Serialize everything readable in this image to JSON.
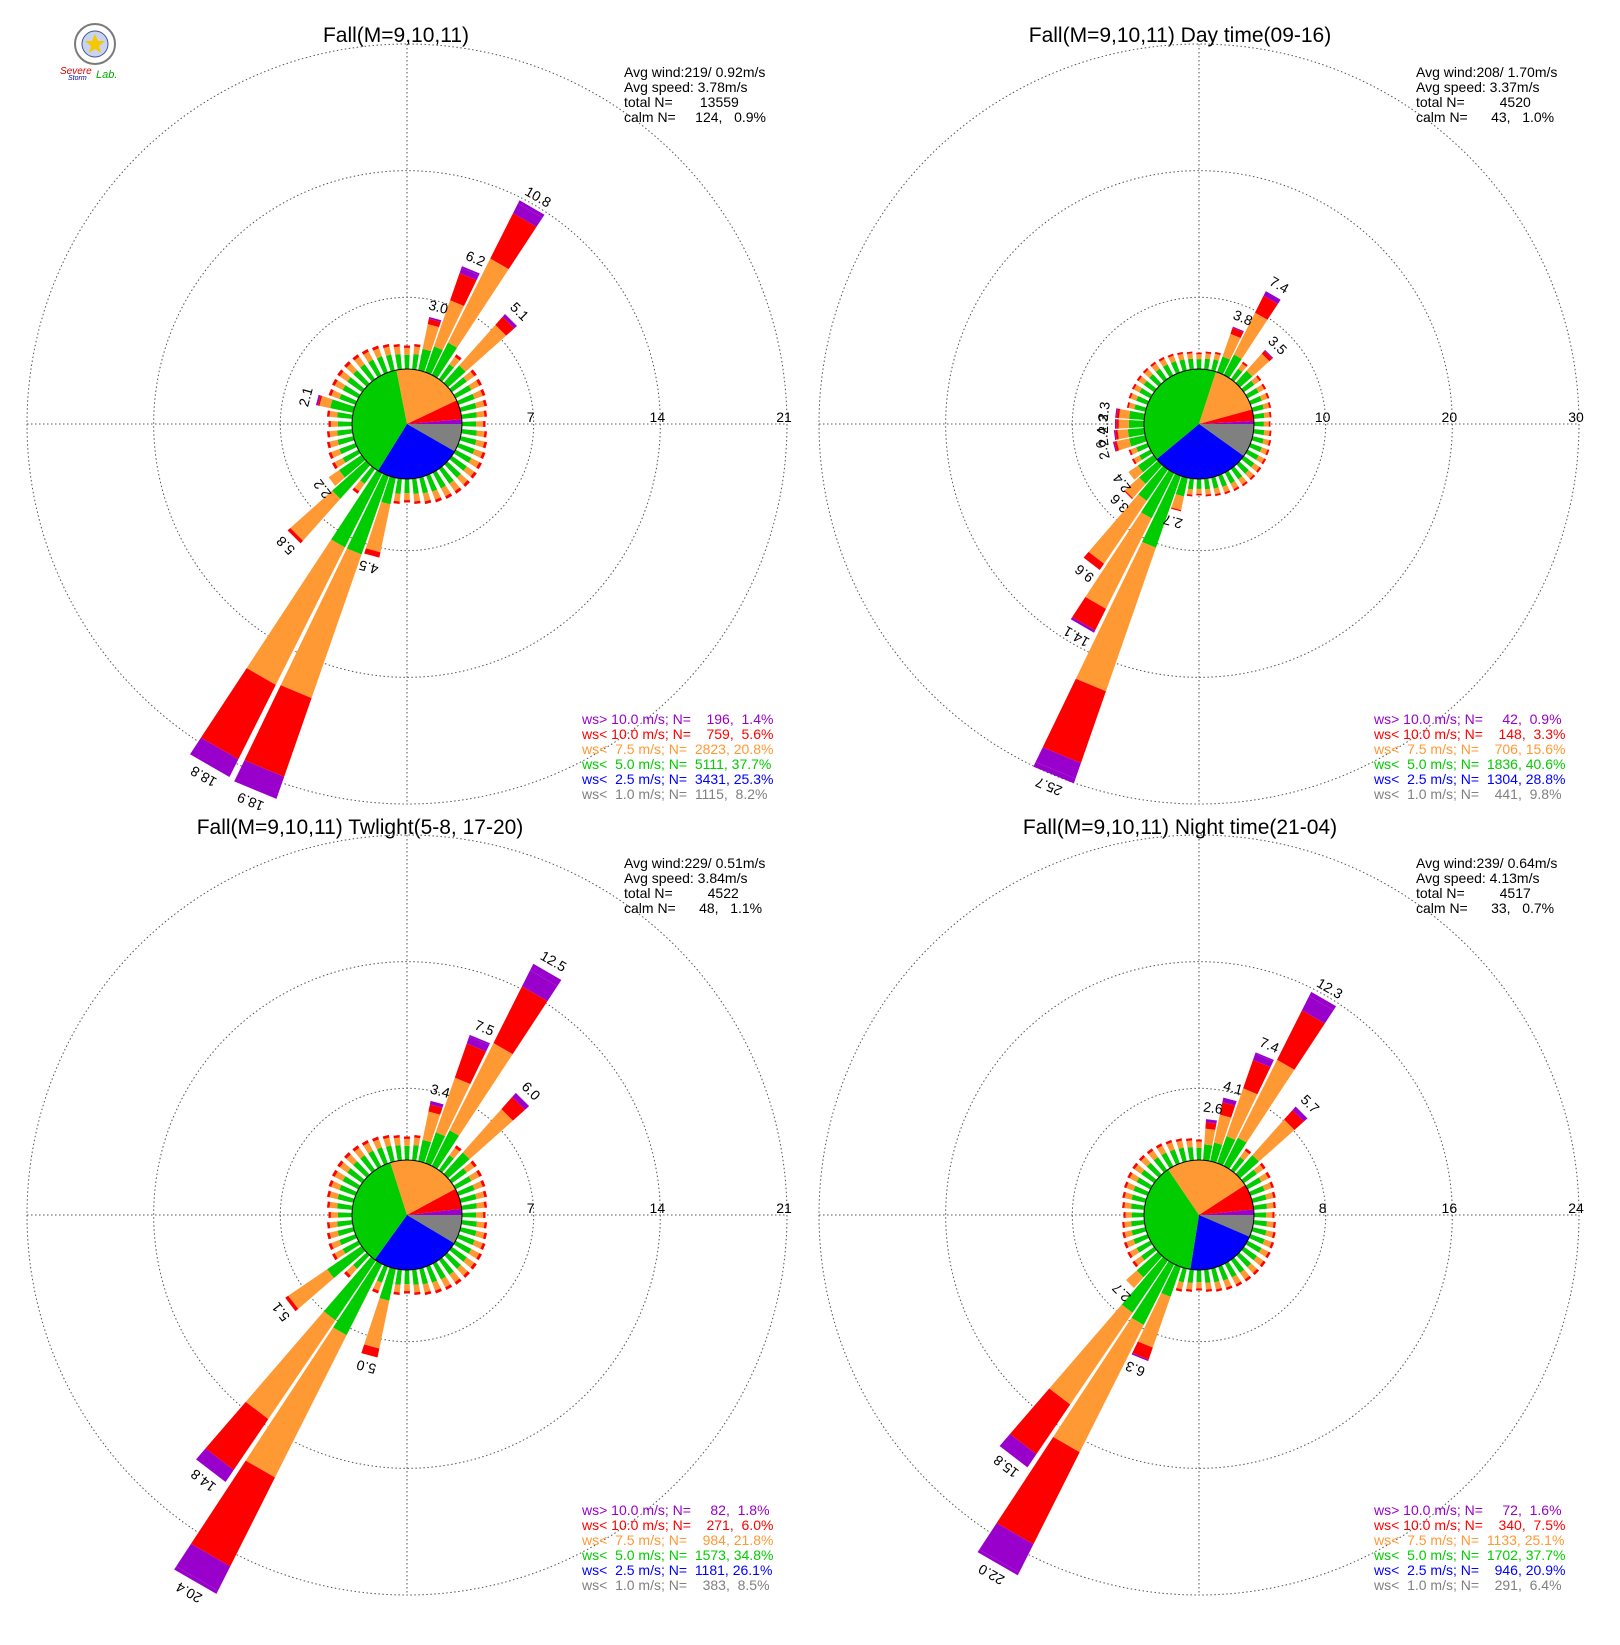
{
  "logo": {
    "line1": "Severe",
    "line2": "Storm",
    "line3": "Lab."
  },
  "legend_colors": {
    "gt10": "#9900cc",
    "lt10": "#ff0000",
    "lt7_5": "#ff9933",
    "lt5": "#00cc00",
    "lt2_5": "#0000ff",
    "lt1": "#808080"
  },
  "chart_data": [
    {
      "type": "wind_rose",
      "title": "Fall(M=9,10,11)",
      "stats": [
        "Avg wind:219/ 0.92m/s",
        "Avg speed: 3.78m/s",
        "total N=       13559",
        "calm N=     124,   0.9%"
      ],
      "ring_labels": [
        "7",
        "14",
        "21"
      ],
      "rmax": 21,
      "petals": [
        {
          "dir": 202.5,
          "total": 18.9,
          "segs": [
            0,
            0,
            4.6,
            8.4,
            4.6,
            1.3
          ]
        },
        {
          "dir": 210,
          "total": 18.8,
          "segs": [
            0,
            0,
            4.6,
            8.5,
            4.6,
            1.1
          ]
        },
        {
          "dir": 225,
          "total": 5.8,
          "segs": [
            0,
            0,
            2.5,
            3.1,
            0.2,
            0
          ]
        },
        {
          "dir": 195,
          "total": 4.5,
          "segs": [
            0,
            0,
            1.5,
            2.7,
            0.3,
            0
          ]
        },
        {
          "dir": 232.5,
          "total": 2.2,
          "segs": [
            0,
            0,
            1.5,
            0.7,
            0,
            0
          ]
        },
        {
          "dir": 30,
          "total": 10.8,
          "segs": [
            0,
            0,
            2.0,
            5.2,
            2.8,
            0.6,
            0.2
          ]
        },
        {
          "dir": 22.5,
          "total": 6.2,
          "segs": [
            0,
            0,
            1.5,
            2.7,
            1.6,
            0.3,
            0.1
          ]
        },
        {
          "dir": 45,
          "total": 5.1,
          "segs": [
            0,
            0,
            1.3,
            3.0,
            0.6,
            0.2
          ]
        },
        {
          "dir": 15,
          "total": 3.0,
          "segs": [
            0,
            0,
            1.2,
            1.4,
            0.3,
            0.1
          ]
        },
        {
          "dir": 285,
          "total": 2.1,
          "segs": [
            0,
            0,
            1.3,
            0.6,
            0.1,
            0.1
          ]
        }
      ],
      "legend": [
        {
          "cls": "gt10",
          "text": "ws> 10.0 m/s; N=    196,  1.4%"
        },
        {
          "cls": "lt10",
          "text": "ws< 10.0 m/s; N=    759,  5.6%"
        },
        {
          "cls": "lt7_5",
          "text": "ws<  7.5 m/s; N=  2823, 20.8%"
        },
        {
          "cls": "lt5",
          "text": "ws<  5.0 m/s; N=  5111, 37.7%"
        },
        {
          "cls": "lt2_5",
          "text": "ws<  2.5 m/s; N=  3431, 25.3%"
        },
        {
          "cls": "lt1",
          "text": "ws<  1.0 m/s; N=  1115,  8.2%"
        }
      ],
      "pie": [
        8.2,
        25.3,
        37.7,
        20.8,
        5.6,
        1.4
      ]
    },
    {
      "type": "wind_rose",
      "title": "Fall(M=9,10,11) Day time(09-16)",
      "stats": [
        "Avg wind:208/ 1.70m/s",
        "Avg speed: 3.37m/s",
        "total N=         4520",
        "calm N=      43,   1.0%"
      ],
      "ring_labels": [
        "10",
        "20",
        "30"
      ],
      "rmax": 30,
      "petals": [
        {
          "dir": 202.5,
          "total": 25.7,
          "segs": [
            0,
            0,
            6.0,
            12.0,
            6.0,
            1.3,
            0.4
          ]
        },
        {
          "dir": 210,
          "total": 14.1,
          "segs": [
            0,
            0,
            4.0,
            8.0,
            1.9,
            0.2
          ]
        },
        {
          "dir": 217.5,
          "total": 9.6,
          "segs": [
            0,
            0,
            3.0,
            6.0,
            0.6
          ]
        },
        {
          "dir": 225,
          "total": 3.6,
          "segs": [
            0,
            0,
            2.0,
            1.5,
            0.1
          ]
        },
        {
          "dir": 195,
          "total": 2.7,
          "segs": [
            0,
            0,
            1.5,
            1.1,
            0.1
          ]
        },
        {
          "dir": 232.5,
          "total": 2.4,
          "segs": [
            0,
            0,
            1.5,
            0.9
          ]
        },
        {
          "dir": 30,
          "total": 7.4,
          "segs": [
            0,
            0,
            1.8,
            3.7,
            1.5,
            0.4
          ]
        },
        {
          "dir": 22.5,
          "total": 3.8,
          "segs": [
            0,
            0,
            1.3,
            1.9,
            0.5,
            0.1
          ]
        },
        {
          "dir": 45,
          "total": 3.5,
          "segs": [
            0,
            0,
            1.3,
            1.8,
            0.3,
            0.1
          ]
        },
        {
          "dir": 255,
          "total": 2.6,
          "segs": [
            0,
            0,
            1.3,
            1.0,
            0.2,
            0.1
          ]
        },
        {
          "dir": 270,
          "total": 2.3,
          "segs": [
            0,
            0,
            1.2,
            0.8,
            0.2,
            0.1
          ]
        },
        {
          "dir": 277.5,
          "total": 2.3,
          "segs": [
            0,
            0,
            1.2,
            0.8,
            0.2,
            0.1
          ]
        },
        {
          "dir": 262.5,
          "total": 2.4,
          "segs": [
            0,
            0,
            1.3,
            0.8,
            0.2,
            0.1
          ]
        }
      ],
      "legend": [
        {
          "cls": "gt10",
          "text": "ws> 10.0 m/s; N=     42,  0.9%"
        },
        {
          "cls": "lt10",
          "text": "ws< 10.0 m/s; N=    148,  3.3%"
        },
        {
          "cls": "lt7_5",
          "text": "ws<  7.5 m/s; N=    706, 15.6%"
        },
        {
          "cls": "lt5",
          "text": "ws<  5.0 m/s; N=  1836, 40.6%"
        },
        {
          "cls": "lt2_5",
          "text": "ws<  2.5 m/s; N=  1304, 28.8%"
        },
        {
          "cls": "lt1",
          "text": "ws<  1.0 m/s; N=    441,  9.8%"
        }
      ],
      "pie": [
        9.8,
        28.8,
        40.6,
        15.6,
        3.3,
        0.9
      ]
    },
    {
      "type": "wind_rose",
      "title": "Fall(M=9,10,11) Twlight(5-8, 17-20)",
      "stats": [
        "Avg wind:229/ 0.51m/s",
        "Avg speed: 3.84m/s",
        "total N=         4522",
        "calm N=      48,   1.1%"
      ],
      "ring_labels": [
        "7",
        "14",
        "21"
      ],
      "rmax": 21,
      "petals": [
        {
          "dir": 210,
          "total": 20.4,
          "segs": [
            0,
            0,
            4.4,
            8.8,
            5.5,
            1.5,
            0.2
          ]
        },
        {
          "dir": 217.5,
          "total": 14.8,
          "segs": [
            0,
            0,
            4.0,
            6.6,
            3.4,
            0.8
          ]
        },
        {
          "dir": 232.5,
          "total": 5.1,
          "segs": [
            0,
            0,
            2.3,
            2.6,
            0.2
          ]
        },
        {
          "dir": 195,
          "total": 5.0,
          "segs": [
            0,
            0,
            1.8,
            2.7,
            0.5
          ]
        },
        {
          "dir": 30,
          "total": 12.5,
          "segs": [
            0,
            0,
            2.2,
            5.4,
            3.5,
            1.0,
            0.4
          ]
        },
        {
          "dir": 22.5,
          "total": 7.5,
          "segs": [
            0,
            0,
            1.8,
            3.2,
            2.0,
            0.4,
            0.1
          ]
        },
        {
          "dir": 45,
          "total": 6.0,
          "segs": [
            0,
            0,
            1.6,
            3.2,
            0.9,
            0.3
          ]
        },
        {
          "dir": 15,
          "total": 3.4,
          "segs": [
            0,
            0,
            1.2,
            1.6,
            0.4,
            0.2
          ]
        }
      ],
      "legend": [
        {
          "cls": "gt10",
          "text": "ws> 10.0 m/s; N=     82,  1.8%"
        },
        {
          "cls": "lt10",
          "text": "ws< 10.0 m/s; N=    271,  6.0%"
        },
        {
          "cls": "lt7_5",
          "text": "ws<  7.5 m/s; N=    984, 21.8%"
        },
        {
          "cls": "lt5",
          "text": "ws<  5.0 m/s; N=  1573, 34.8%"
        },
        {
          "cls": "lt2_5",
          "text": "ws<  2.5 m/s; N=  1181, 26.1%"
        },
        {
          "cls": "lt1",
          "text": "ws<  1.0 m/s; N=    383,  8.5%"
        }
      ],
      "pie": [
        8.5,
        26.1,
        34.8,
        21.8,
        6.0,
        1.8
      ]
    },
    {
      "type": "wind_rose",
      "title": "Fall(M=9,10,11) Night time(21-04)",
      "stats": [
        "Avg wind:239/ 0.64m/s",
        "Avg speed: 4.13m/s",
        "total N=         4517",
        "calm N=      33,   0.7%"
      ],
      "ring_labels": [
        "8",
        "16",
        "24"
      ],
      "rmax": 24,
      "petals": [
        {
          "dir": 210,
          "total": 22.0,
          "segs": [
            0,
            0,
            4.3,
            9.0,
            6.5,
            2.0,
            0.2
          ]
        },
        {
          "dir": 217.5,
          "total": 15.8,
          "segs": [
            0,
            0,
            4.0,
            7.0,
            3.8,
            1.0
          ]
        },
        {
          "dir": 202.5,
          "total": 6.3,
          "segs": [
            0,
            0,
            2.0,
            3.4,
            0.8,
            0.1
          ]
        },
        {
          "dir": 225,
          "total": 2.7,
          "segs": [
            0,
            0,
            1.8,
            0.9
          ]
        },
        {
          "dir": 30,
          "total": 12.3,
          "segs": [
            0,
            0,
            2.0,
            5.5,
            3.5,
            1.0,
            0.3
          ]
        },
        {
          "dir": 22.5,
          "total": 7.4,
          "segs": [
            0,
            0,
            1.8,
            3.2,
            1.9,
            0.4,
            0.1
          ]
        },
        {
          "dir": 45,
          "total": 5.7,
          "segs": [
            0,
            0,
            1.6,
            3.0,
            0.8,
            0.3
          ]
        },
        {
          "dir": 15,
          "total": 4.1,
          "segs": [
            0,
            0,
            1.2,
            1.8,
            0.8,
            0.3
          ]
        },
        {
          "dir": 7.5,
          "total": 2.6,
          "segs": [
            0,
            0,
            1.0,
            1.0,
            0.4,
            0.2
          ]
        }
      ],
      "legend": [
        {
          "cls": "gt10",
          "text": "ws> 10.0 m/s; N=     72,  1.6%"
        },
        {
          "cls": "lt10",
          "text": "ws< 10.0 m/s; N=    340,  7.5%"
        },
        {
          "cls": "lt7_5",
          "text": "ws<  7.5 m/s; N=  1133, 25.1%"
        },
        {
          "cls": "lt5",
          "text": "ws<  5.0 m/s; N=  1702, 37.7%"
        },
        {
          "cls": "lt2_5",
          "text": "ws<  2.5 m/s; N=    946, 20.9%"
        },
        {
          "cls": "lt1",
          "text": "ws<  1.0 m/s; N=    291,  6.4%"
        }
      ],
      "pie": [
        6.4,
        20.9,
        37.7,
        25.1,
        7.5,
        1.6
      ]
    }
  ]
}
